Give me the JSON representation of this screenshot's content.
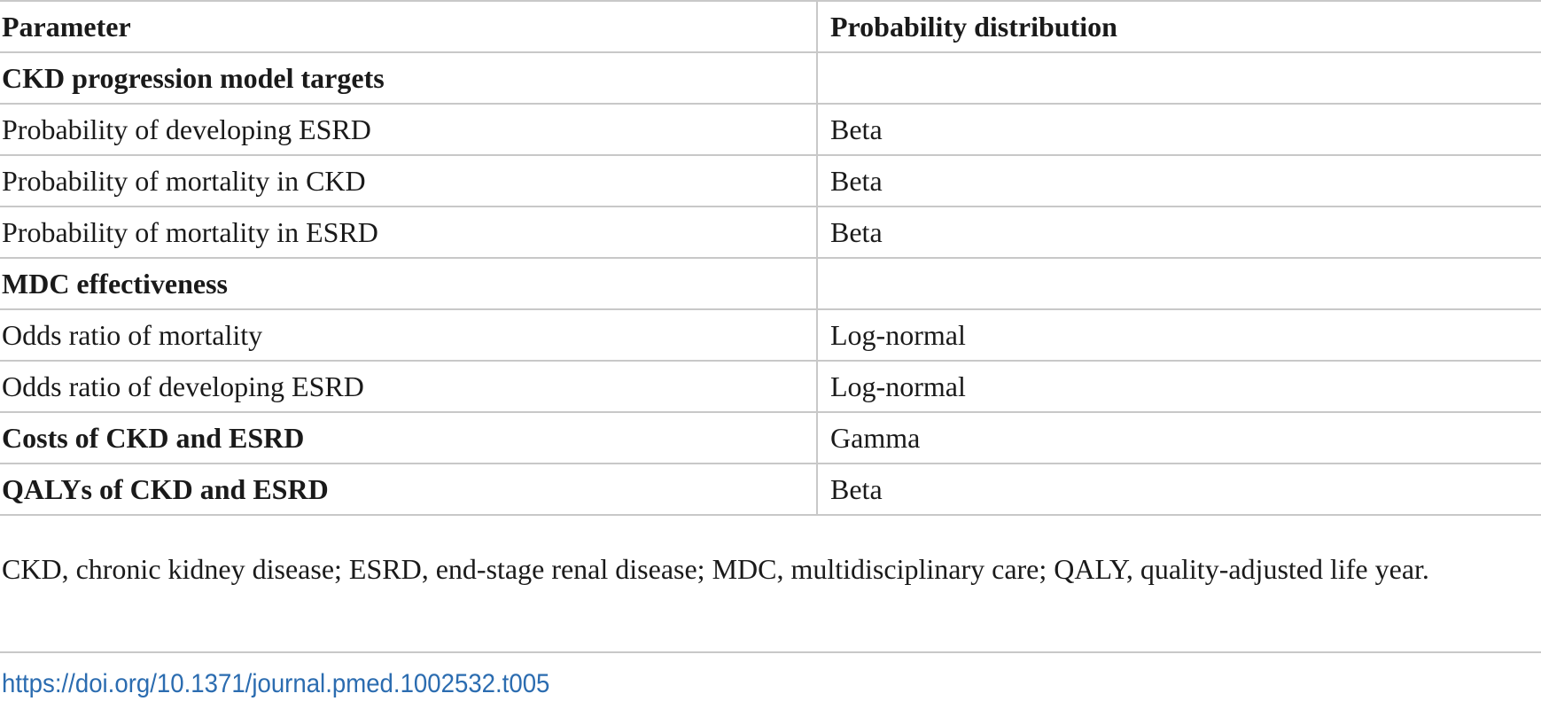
{
  "table": {
    "headers": [
      "Parameter",
      "Probability distribution"
    ],
    "rows": [
      {
        "parameter": "CKD progression model targets",
        "distribution": "",
        "section": true
      },
      {
        "parameter": "Probability of developing ESRD",
        "distribution": "Beta",
        "section": false
      },
      {
        "parameter": "Probability of mortality in CKD",
        "distribution": "Beta",
        "section": false
      },
      {
        "parameter": "Probability of mortality in ESRD",
        "distribution": "Beta",
        "section": false
      },
      {
        "parameter": "MDC effectiveness",
        "distribution": "",
        "section": true
      },
      {
        "parameter": "Odds ratio of mortality",
        "distribution": "Log-normal",
        "section": false
      },
      {
        "parameter": "Odds ratio of developing ESRD",
        "distribution": "Log-normal",
        "section": false
      },
      {
        "parameter": "Costs of CKD and ESRD",
        "distribution": "Gamma",
        "section": true
      },
      {
        "parameter": "QALYs of CKD and ESRD",
        "distribution": "Beta",
        "section": true
      }
    ]
  },
  "footnote": "CKD, chronic kidney disease; ESRD, end-stage renal disease; MDC, multidisciplinary care; QALY, quality-adjusted life year.",
  "doi_link": "https://doi.org/10.1371/journal.pmed.1002532.t005"
}
